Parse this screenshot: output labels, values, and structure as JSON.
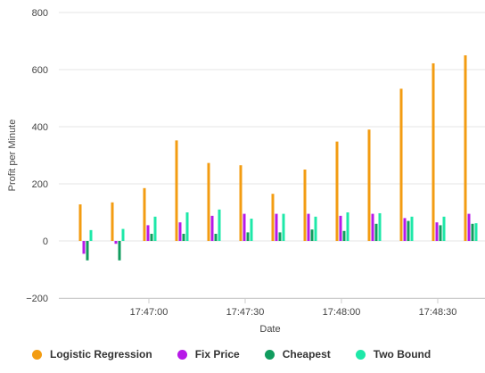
{
  "chart_data": {
    "type": "bar",
    "xlabel": "Date",
    "ylabel": "Profit per Minute",
    "ylim": [
      -200,
      800
    ],
    "yticks": [
      -200,
      0,
      200,
      400,
      600,
      800
    ],
    "xticks": [
      "17:47:00",
      "17:47:30",
      "17:48:00",
      "17:48:30"
    ],
    "x": [
      "17:46:40",
      "17:46:50",
      "17:47:00",
      "17:47:10",
      "17:47:20",
      "17:47:30",
      "17:47:40",
      "17:47:50",
      "17:48:00",
      "17:48:10",
      "17:48:20",
      "17:48:30",
      "17:48:40"
    ],
    "grid": true,
    "legend_position": "bottom",
    "series": [
      {
        "name": "Logistic Regression",
        "color": "#F39C12",
        "values": [
          128,
          135,
          185,
          352,
          273,
          265,
          165,
          250,
          348,
          390,
          533,
          622,
          650
        ]
      },
      {
        "name": "Fix Price",
        "color": "#B719E8",
        "values": [
          -45,
          -10,
          55,
          65,
          88,
          95,
          95,
          95,
          88,
          95,
          80,
          65,
          95
        ]
      },
      {
        "name": "Cheapest",
        "color": "#119C5E",
        "values": [
          -68,
          -68,
          25,
          25,
          25,
          30,
          30,
          40,
          35,
          60,
          70,
          55,
          60
        ]
      },
      {
        "name": "Two Bound",
        "color": "#1EE8A8",
        "values": [
          38,
          42,
          85,
          100,
          110,
          78,
          95,
          85,
          100,
          97,
          85,
          85,
          62
        ]
      }
    ]
  }
}
